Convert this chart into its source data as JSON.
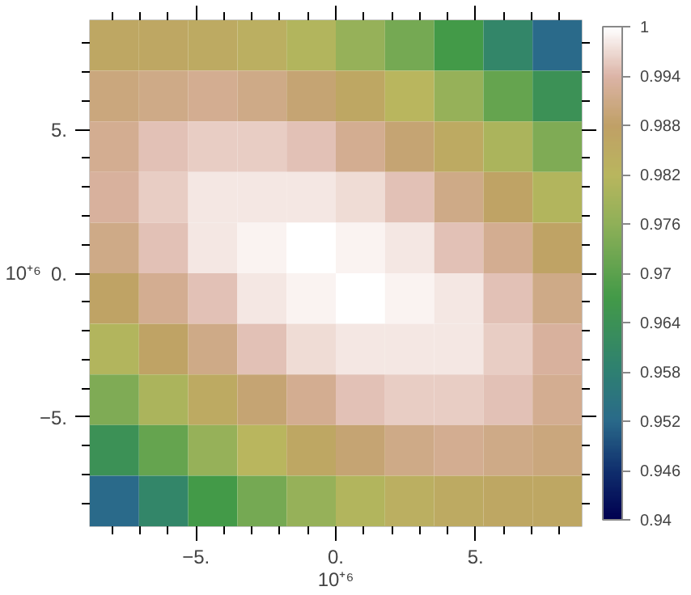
{
  "chart_data": {
    "type": "heatmap",
    "xlabel": "10⁺⁶",
    "ylabel": "10⁺⁶",
    "x": [
      -7.92,
      -6.16,
      -4.4,
      -2.64,
      -0.88,
      0.88,
      2.64,
      4.4,
      6.16,
      7.92
    ],
    "y": [
      7.92,
      6.16,
      4.4,
      2.64,
      0.88,
      -0.88,
      -2.64,
      -4.4,
      -6.16,
      -7.92
    ],
    "cells": [
      [
        0.986,
        0.986,
        0.985,
        0.984,
        0.981,
        0.977,
        0.973,
        0.967,
        0.96,
        0.952
      ],
      [
        0.99,
        0.991,
        0.992,
        0.991,
        0.989,
        0.986,
        0.982,
        0.977,
        0.971,
        0.964
      ],
      [
        0.992,
        0.995,
        0.996,
        0.996,
        0.995,
        0.992,
        0.989,
        0.985,
        0.98,
        0.974
      ],
      [
        0.993,
        0.996,
        0.998,
        0.998,
        0.998,
        0.997,
        0.995,
        0.991,
        0.987,
        0.981
      ],
      [
        0.991,
        0.995,
        0.998,
        0.999,
        1.0,
        0.999,
        0.998,
        0.995,
        0.992,
        0.987
      ],
      [
        0.987,
        0.992,
        0.995,
        0.998,
        0.999,
        1.0,
        0.999,
        0.998,
        0.995,
        0.991
      ],
      [
        0.981,
        0.987,
        0.991,
        0.995,
        0.997,
        0.998,
        0.998,
        0.998,
        0.996,
        0.993
      ],
      [
        0.974,
        0.98,
        0.985,
        0.989,
        0.992,
        0.995,
        0.996,
        0.996,
        0.995,
        0.992
      ],
      [
        0.964,
        0.971,
        0.977,
        0.982,
        0.986,
        0.989,
        0.991,
        0.992,
        0.991,
        0.99
      ],
      [
        0.952,
        0.96,
        0.967,
        0.973,
        0.977,
        0.981,
        0.984,
        0.985,
        0.986,
        0.986
      ]
    ],
    "clim": [
      0.94,
      1
    ],
    "cticks": [
      0.94,
      0.946,
      0.952,
      0.958,
      0.964,
      0.97,
      0.976,
      0.982,
      0.988,
      0.994,
      1
    ],
    "xlim": [
      -8.8,
      8.8
    ],
    "ylim": [
      -8.8,
      8.8
    ],
    "xticks": [
      {
        "value": -8,
        "label": null
      },
      {
        "value": -7,
        "label": null
      },
      {
        "value": -6,
        "label": null
      },
      {
        "value": -5,
        "label": "−5."
      },
      {
        "value": -4,
        "label": null
      },
      {
        "value": -3,
        "label": null
      },
      {
        "value": -2,
        "label": null
      },
      {
        "value": -1,
        "label": null
      },
      {
        "value": 0,
        "label": "0."
      },
      {
        "value": 1,
        "label": null
      },
      {
        "value": 2,
        "label": null
      },
      {
        "value": 3,
        "label": null
      },
      {
        "value": 4,
        "label": null
      },
      {
        "value": 5,
        "label": "5."
      },
      {
        "value": 6,
        "label": null
      },
      {
        "value": 7,
        "label": null
      },
      {
        "value": 8,
        "label": null
      }
    ],
    "yticks": [
      {
        "value": -8,
        "label": null
      },
      {
        "value": -7,
        "label": null
      },
      {
        "value": -6,
        "label": null
      },
      {
        "value": -5,
        "label": "−5."
      },
      {
        "value": -4,
        "label": null
      },
      {
        "value": -3,
        "label": null
      },
      {
        "value": -2,
        "label": null
      },
      {
        "value": -1,
        "label": null
      },
      {
        "value": 0,
        "label": "0."
      },
      {
        "value": 1,
        "label": null
      },
      {
        "value": 2,
        "label": null
      },
      {
        "value": 3,
        "label": null
      },
      {
        "value": 4,
        "label": null
      },
      {
        "value": 5,
        "label": "5."
      },
      {
        "value": 6,
        "label": null
      },
      {
        "value": 7,
        "label": null
      },
      {
        "value": 8,
        "label": null
      }
    ]
  }
}
